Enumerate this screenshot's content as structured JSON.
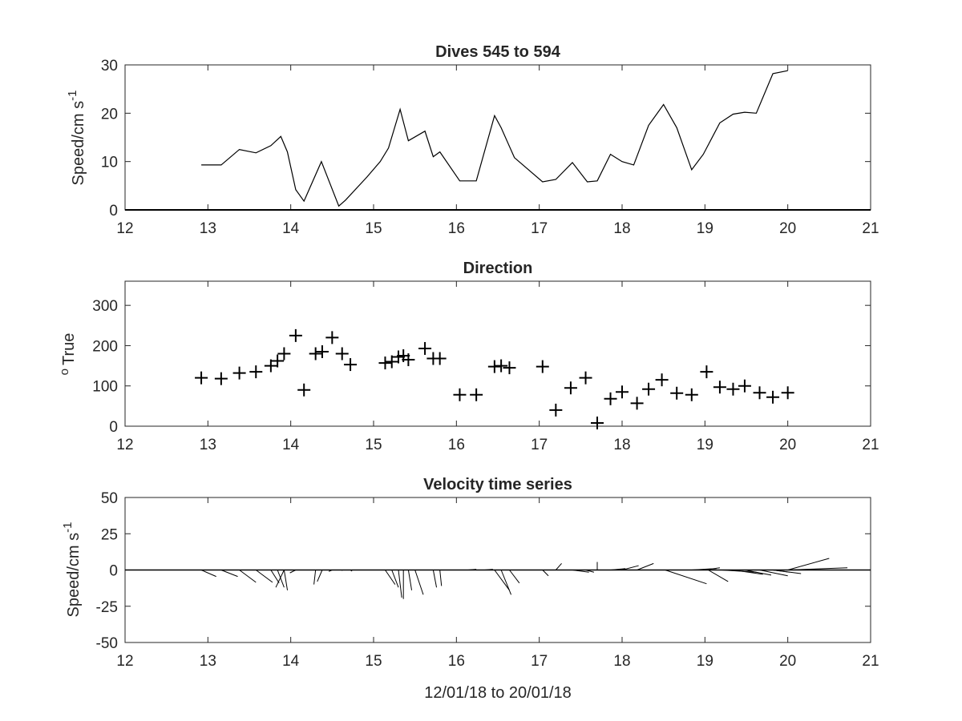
{
  "chart_data": [
    {
      "type": "line",
      "title": "Dives 545 to 594",
      "xlabel": "",
      "ylabel": "Speed/cm s",
      "ylabel_superscript": "-1",
      "xlim": [
        12,
        21
      ],
      "ylim": [
        0,
        30
      ],
      "xticks": [
        "12",
        "13",
        "14",
        "15",
        "16",
        "17",
        "18",
        "19",
        "20",
        "21"
      ],
      "yticks": [
        "0",
        "10",
        "20",
        "30"
      ],
      "grid": false,
      "series": [
        {
          "x": [
            12.92,
            13.16,
            13.38,
            13.58,
            13.76,
            13.88,
            13.96,
            14.06,
            14.16,
            14.37,
            14.58,
            14.66,
            14.92,
            15.08,
            15.18,
            15.32,
            15.42,
            15.62,
            15.72,
            15.8,
            16.04,
            16.24,
            16.46,
            16.54,
            16.7,
            17.04,
            17.2,
            17.4,
            17.58,
            17.7,
            17.86,
            18.0,
            18.14,
            18.32,
            18.5,
            18.66,
            18.84,
            18.98,
            19.18,
            19.34,
            19.48,
            19.62,
            19.82,
            20.0
          ],
          "y": [
            9.3,
            9.3,
            12.5,
            11.8,
            13.3,
            15.2,
            12.0,
            4.2,
            1.8,
            10.0,
            0.8,
            2.0,
            6.8,
            10.0,
            12.8,
            20.8,
            14.3,
            16.3,
            11.0,
            12.0,
            6.0,
            6.0,
            19.5,
            17.0,
            10.8,
            5.8,
            6.3,
            9.8,
            5.8,
            6.0,
            11.5,
            10.0,
            9.3,
            17.5,
            21.8,
            17.0,
            8.3,
            11.5,
            18.0,
            19.8,
            20.2,
            20.0,
            28.2,
            28.8
          ]
        }
      ]
    },
    {
      "type": "scatter",
      "title": "Direction",
      "xlabel": "",
      "ylabel": "True",
      "ylabel_superscript": "o",
      "xlim": [
        12,
        21
      ],
      "ylim": [
        0,
        360
      ],
      "xticks": [
        "12",
        "13",
        "14",
        "15",
        "16",
        "17",
        "18",
        "19",
        "20",
        "21"
      ],
      "yticks": [
        "0",
        "100",
        "200",
        "300"
      ],
      "grid": false,
      "marker": "+",
      "series": [
        {
          "x": [
            12.92,
            13.16,
            13.38,
            13.58,
            13.76,
            13.84,
            13.92,
            14.06,
            14.16,
            14.3,
            14.38,
            14.5,
            14.62,
            14.72,
            15.14,
            15.22,
            15.3,
            15.36,
            15.42,
            15.62,
            15.72,
            15.8,
            16.04,
            16.24,
            16.46,
            16.54,
            16.64,
            17.04,
            17.2,
            17.38,
            17.56,
            17.7,
            17.86,
            18.0,
            18.18,
            18.32,
            18.48,
            18.66,
            18.84,
            19.02,
            19.18,
            19.34,
            19.48,
            19.66,
            19.82,
            20.0
          ],
          "y": [
            120,
            118,
            132,
            135,
            150,
            162,
            180,
            225,
            90,
            180,
            185,
            220,
            180,
            153,
            157,
            160,
            172,
            175,
            165,
            193,
            168,
            168,
            78,
            78,
            148,
            150,
            145,
            148,
            40,
            95,
            120,
            8,
            68,
            85,
            57,
            92,
            115,
            82,
            78,
            135,
            97,
            92,
            100,
            83,
            72,
            83
          ]
        }
      ]
    },
    {
      "type": "quiver",
      "title": "Velocity time series",
      "xlabel": "12/01/18 to 20/01/18",
      "ylabel": "Speed/cm s",
      "ylabel_superscript": "-1",
      "xlim": [
        12,
        21
      ],
      "ylim": [
        -50,
        50
      ],
      "xticks": [
        "12",
        "13",
        "14",
        "15",
        "16",
        "17",
        "18",
        "19",
        "20",
        "21"
      ],
      "yticks": [
        "-50",
        "-25",
        "0",
        "25",
        "50"
      ],
      "grid": false,
      "baseline": 0,
      "sticks": [
        {
          "x": 12.92,
          "u": 0.18,
          "v": -4.5
        },
        {
          "x": 13.16,
          "u": 0.2,
          "v": -4.5
        },
        {
          "x": 13.38,
          "u": 0.2,
          "v": -8.5
        },
        {
          "x": 13.58,
          "u": 0.2,
          "v": -8.5
        },
        {
          "x": 13.76,
          "u": 0.1,
          "v": -9.0
        },
        {
          "x": 13.84,
          "u": 0.08,
          "v": -12.0
        },
        {
          "x": 13.92,
          "u": 0.04,
          "v": -14.0
        },
        {
          "x": 13.92,
          "u": -0.1,
          "v": -12.0
        },
        {
          "x": 14.06,
          "u": -0.07,
          "v": -2.0
        },
        {
          "x": 14.3,
          "u": -0.02,
          "v": -10.0
        },
        {
          "x": 14.38,
          "u": -0.06,
          "v": -8.0
        },
        {
          "x": 14.5,
          "u": -0.04,
          "v": -1.0
        },
        {
          "x": 14.62,
          "u": 0.0,
          "v": -0.5
        },
        {
          "x": 14.72,
          "u": 0.02,
          "v": -0.8
        },
        {
          "x": 15.14,
          "u": 0.12,
          "v": -10.0
        },
        {
          "x": 15.22,
          "u": 0.08,
          "v": -12.0
        },
        {
          "x": 15.3,
          "u": 0.04,
          "v": -19.0
        },
        {
          "x": 15.36,
          "u": 0.0,
          "v": -20.0
        },
        {
          "x": 15.42,
          "u": 0.04,
          "v": -14.0
        },
        {
          "x": 15.5,
          "u": 0.1,
          "v": -17.0
        },
        {
          "x": 15.72,
          "u": 0.04,
          "v": -12.0
        },
        {
          "x": 15.8,
          "u": 0.02,
          "v": -11.0
        },
        {
          "x": 16.14,
          "u": 0.1,
          "v": 0.5
        },
        {
          "x": 16.34,
          "u": 0.1,
          "v": 0.5
        },
        {
          "x": 16.46,
          "u": 0.18,
          "v": -14.0
        },
        {
          "x": 16.54,
          "u": 0.12,
          "v": -17.0
        },
        {
          "x": 16.64,
          "u": 0.12,
          "v": -9.0
        },
        {
          "x": 17.04,
          "u": 0.07,
          "v": -4.0
        },
        {
          "x": 17.2,
          "u": 0.07,
          "v": 4.5
        },
        {
          "x": 17.4,
          "u": 0.2,
          "v": -1.5
        },
        {
          "x": 17.56,
          "u": 0.1,
          "v": -1.5
        },
        {
          "x": 17.7,
          "u": 0.0,
          "v": 5.5
        },
        {
          "x": 17.86,
          "u": 0.18,
          "v": 1.0
        },
        {
          "x": 18.0,
          "u": 0.2,
          "v": 3.0
        },
        {
          "x": 18.18,
          "u": 0.2,
          "v": 4.5
        },
        {
          "x": 18.52,
          "u": 0.5,
          "v": -9.5
        },
        {
          "x": 18.84,
          "u": 0.3,
          "v": 1.0
        },
        {
          "x": 18.98,
          "u": 0.2,
          "v": 1.5
        },
        {
          "x": 19.04,
          "u": 0.24,
          "v": -8.0
        },
        {
          "x": 19.2,
          "u": 0.42,
          "v": -1.5
        },
        {
          "x": 19.34,
          "u": 0.36,
          "v": -3.0
        },
        {
          "x": 19.48,
          "u": 0.32,
          "v": -3.5
        },
        {
          "x": 19.66,
          "u": 0.34,
          "v": -4.0
        },
        {
          "x": 19.82,
          "u": 0.2,
          "v": -1.5
        },
        {
          "x": 19.82,
          "u": 0.34,
          "v": -2.5
        },
        {
          "x": 20.0,
          "u": 0.5,
          "v": 8.0
        },
        {
          "x": 20.0,
          "u": 0.72,
          "v": 1.5
        }
      ]
    }
  ]
}
